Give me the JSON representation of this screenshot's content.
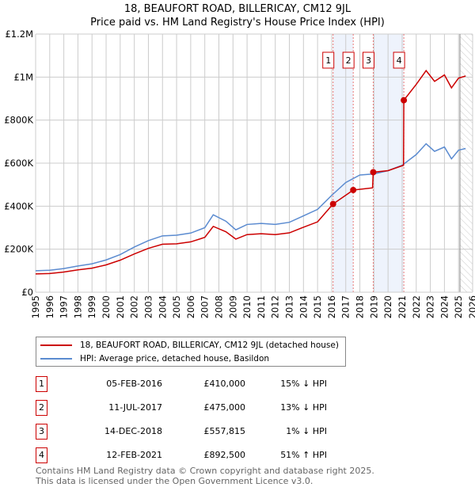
{
  "chart_data": {
    "type": "line",
    "title": "18, BEAUFORT ROAD, BILLERICAY, CM12 9JL",
    "subtitle": "Price paid vs. HM Land Registry's House Price Index (HPI)",
    "xlim": [
      1995,
      2026
    ],
    "ylim": [
      0,
      1200000
    ],
    "x_ticks": [
      "1995",
      "1996",
      "1997",
      "1998",
      "1999",
      "2000",
      "2001",
      "2002",
      "2003",
      "2004",
      "2005",
      "2006",
      "2007",
      "2008",
      "2009",
      "2010",
      "2011",
      "2012",
      "2013",
      "2014",
      "2015",
      "2016",
      "2017",
      "2018",
      "2019",
      "2020",
      "2021",
      "2022",
      "2023",
      "2024",
      "2025",
      "2026"
    ],
    "y_ticks": [
      {
        "v": 0,
        "label": "£0"
      },
      {
        "v": 200000,
        "label": "£200K"
      },
      {
        "v": 400000,
        "label": "£400K"
      },
      {
        "v": 600000,
        "label": "£600K"
      },
      {
        "v": 800000,
        "label": "£800K"
      },
      {
        "v": 1000000,
        "label": "£1M"
      },
      {
        "v": 1200000,
        "label": "£1.2M"
      }
    ],
    "series": [
      {
        "name": "18, BEAUFORT ROAD, BILLERICAY, CM12 9JL (detached house)",
        "color": "#cc0000",
        "x": [
          1995,
          1996,
          1997,
          1998,
          1999,
          2000,
          2001,
          2002,
          2003,
          2004,
          2005,
          2006,
          2007,
          2007.6,
          2008.5,
          2009.2,
          2010,
          2011,
          2012,
          2013,
          2014,
          2015,
          2016.1,
          2017.53,
          2018.9,
          2018.95,
          2020,
          2021.1,
          2021.12,
          2022,
          2022.7,
          2023.3,
          2024,
          2024.5,
          2025,
          2025.5
        ],
        "y": [
          85000,
          87000,
          94000,
          104000,
          112000,
          127000,
          149000,
          178000,
          204000,
          223000,
          225000,
          234000,
          255000,
          306000,
          281000,
          247000,
          268000,
          272000,
          268000,
          276000,
          302000,
          327000,
          410000,
          475000,
          485000,
          557815,
          565000,
          590000,
          892500,
          966000,
          1030000,
          980000,
          1010000,
          950000,
          995000,
          1005000
        ]
      },
      {
        "name": "HPI: Average price, detached house, Basildon",
        "color": "#5b8bd0",
        "x": [
          1995,
          1996,
          1997,
          1998,
          1999,
          2000,
          2001,
          2002,
          2003,
          2004,
          2005,
          2006,
          2007,
          2007.6,
          2008.5,
          2009.2,
          2010,
          2011,
          2012,
          2013,
          2014,
          2015,
          2016,
          2017,
          2018,
          2019,
          2020,
          2021,
          2022,
          2022.7,
          2023.3,
          2024,
          2024.5,
          2025,
          2025.5
        ],
        "y": [
          100000,
          102000,
          110000,
          122000,
          132000,
          150000,
          175000,
          210000,
          240000,
          262000,
          265000,
          275000,
          300000,
          360000,
          330000,
          290000,
          315000,
          320000,
          315000,
          325000,
          355000,
          385000,
          450000,
          510000,
          545000,
          550000,
          565000,
          590000,
          640000,
          690000,
          655000,
          675000,
          620000,
          660000,
          668000
        ]
      }
    ],
    "sales": [
      {
        "n": "1",
        "x": 2016.1,
        "y": 410000,
        "date": "05-FEB-2016",
        "price": "£410,000",
        "hpi": "15% ↓ HPI"
      },
      {
        "n": "2",
        "x": 2017.53,
        "y": 475000,
        "date": "11-JUL-2017",
        "price": "£475,000",
        "hpi": "13% ↓ HPI"
      },
      {
        "n": "3",
        "x": 2018.95,
        "y": 557815,
        "date": "14-DEC-2018",
        "price": "£557,815",
        "hpi": "1% ↓ HPI"
      },
      {
        "n": "4",
        "x": 2021.12,
        "y": 892500,
        "date": "12-FEB-2021",
        "price": "£892,500",
        "hpi": "51% ↑ HPI"
      }
    ],
    "hatch_from": 2025.1
  },
  "footer": [
    "Contains HM Land Registry data © Crown copyright and database right 2025.",
    "This data is licensed under the Open Government Licence v3.0."
  ]
}
